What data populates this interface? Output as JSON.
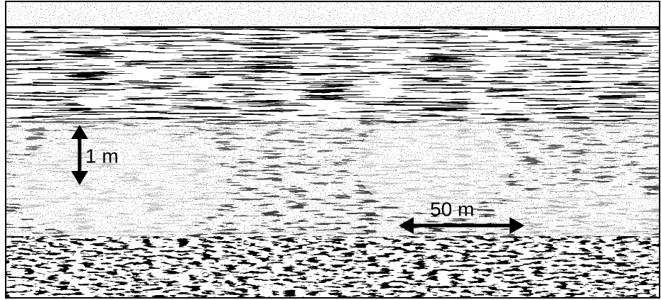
{
  "annotations": {
    "vertical_scale": "1 m",
    "horizontal_scale": "50 m"
  }
}
